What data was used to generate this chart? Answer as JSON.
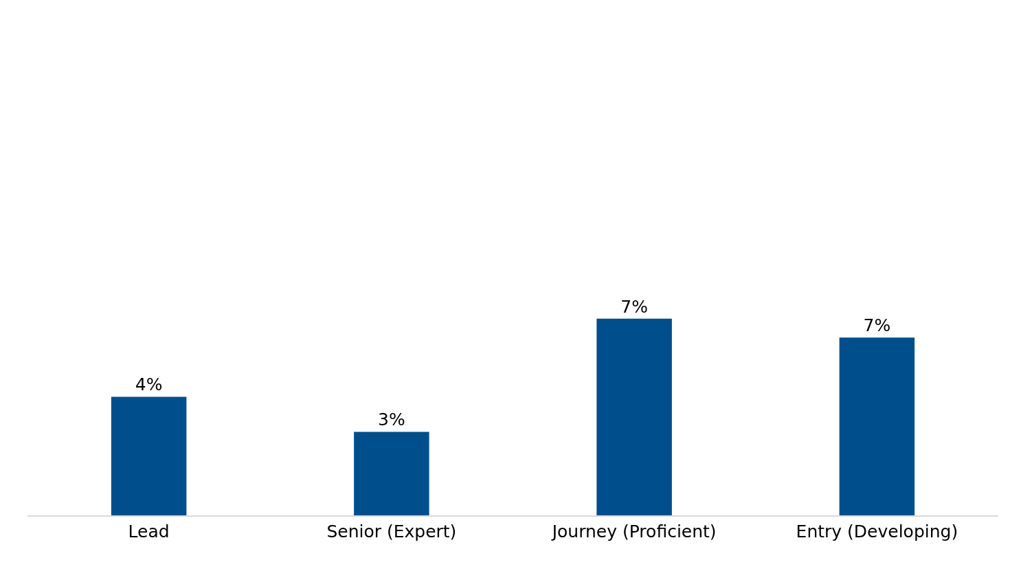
{
  "chart_data": {
    "type": "bar",
    "categories": [
      "Lead",
      "Senior (Expert)",
      "Journey (Proficient)",
      "Entry (Developing)"
    ],
    "values": [
      4.4,
      3.1,
      7.3,
      6.6
    ],
    "value_labels": [
      "4%",
      "3%",
      "7%",
      "7%"
    ],
    "color": "#004f8c",
    "ylim": [
      0,
      19
    ]
  }
}
